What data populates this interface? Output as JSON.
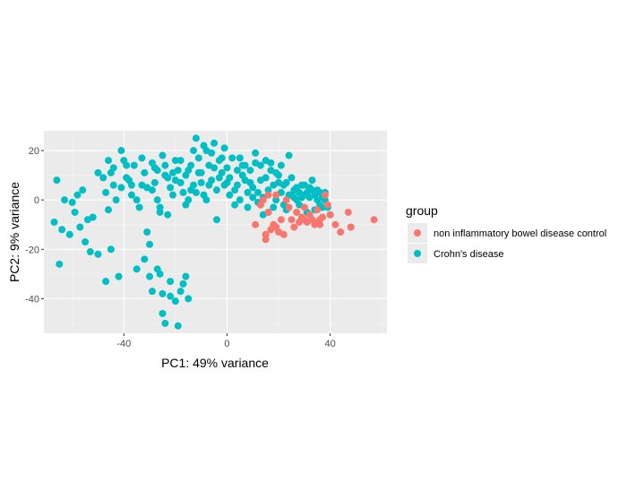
{
  "chart_data": {
    "type": "scatter",
    "xlabel": "PC1: 49% variance",
    "ylabel": "PC2: 9% variance",
    "xlim": [
      -71,
      62
    ],
    "ylim": [
      -54,
      28
    ],
    "x_ticks": [
      -40,
      0,
      40
    ],
    "y_ticks": [
      20,
      0,
      -20,
      -40
    ],
    "x_tick_labels": [
      "-40",
      "0",
      "40"
    ],
    "y_tick_labels": [
      "20",
      "0",
      "-20",
      "-40"
    ],
    "grid": true,
    "legend": {
      "title": "group",
      "placement": "right"
    },
    "series": [
      {
        "name": "non inflammatory bowel disease control",
        "color": "#F8766D",
        "points": [
          [
            11,
            -10
          ],
          [
            13,
            -2
          ],
          [
            14,
            0
          ],
          [
            15,
            -14
          ],
          [
            15,
            -16
          ],
          [
            16,
            -5
          ],
          [
            17,
            -12
          ],
          [
            18,
            -10
          ],
          [
            19,
            2
          ],
          [
            20,
            -13
          ],
          [
            21,
            -8
          ],
          [
            22,
            -14
          ],
          [
            23,
            0
          ],
          [
            25,
            -8
          ],
          [
            26,
            -11
          ],
          [
            27,
            -5
          ],
          [
            28,
            -9
          ],
          [
            29,
            -7
          ],
          [
            30,
            -8
          ],
          [
            31,
            -9
          ],
          [
            32,
            -6
          ],
          [
            33,
            -8
          ],
          [
            34,
            -10
          ],
          [
            35,
            -4
          ],
          [
            36,
            -8
          ],
          [
            37,
            -7
          ],
          [
            38,
            2
          ],
          [
            39,
            -2
          ],
          [
            40,
            -6
          ],
          [
            42,
            -10
          ],
          [
            44,
            -13
          ],
          [
            47,
            -5
          ],
          [
            48,
            -11
          ],
          [
            57,
            -8
          ],
          [
            16,
            2
          ],
          [
            19,
            -11
          ],
          [
            24,
            -3
          ],
          [
            30,
            -3
          ],
          [
            34,
            -9
          ],
          [
            36,
            -10
          ]
        ]
      },
      {
        "name": "Crohn's disease",
        "color": "#00BFC4",
        "points": [
          [
            -67,
            -9
          ],
          [
            -66,
            8
          ],
          [
            -65,
            -26
          ],
          [
            -64,
            -12
          ],
          [
            -63,
            0
          ],
          [
            -61,
            -14
          ],
          [
            -59,
            -5
          ],
          [
            -58,
            2
          ],
          [
            -57,
            -11
          ],
          [
            -56,
            4
          ],
          [
            -55,
            -17
          ],
          [
            -53,
            -21
          ],
          [
            -52,
            -7
          ],
          [
            -50,
            11
          ],
          [
            -50,
            -22
          ],
          [
            -48,
            9
          ],
          [
            -47,
            3
          ],
          [
            -46,
            -4
          ],
          [
            -45,
            -20
          ],
          [
            -44,
            13
          ],
          [
            -43,
            0
          ],
          [
            -42,
            -31
          ],
          [
            -41,
            20
          ],
          [
            -40,
            16
          ],
          [
            -39,
            9
          ],
          [
            -37,
            6
          ],
          [
            -36,
            14
          ],
          [
            -35,
            0
          ],
          [
            -34,
            -3
          ],
          [
            -33,
            17
          ],
          [
            -32,
            11
          ],
          [
            -31,
            -13
          ],
          [
            -30,
            -31
          ],
          [
            -29,
            4
          ],
          [
            -28,
            7
          ],
          [
            -27,
            12
          ],
          [
            -26,
            -3
          ],
          [
            -25,
            18
          ],
          [
            -24,
            14
          ],
          [
            -23,
            9
          ],
          [
            -22,
            5
          ],
          [
            -21,
            2
          ],
          [
            -20,
            16
          ],
          [
            -19,
            12
          ],
          [
            -18,
            7
          ],
          [
            -17,
            3
          ],
          [
            -16,
            10
          ],
          [
            -15,
            0
          ],
          [
            -14,
            14
          ],
          [
            -13,
            6
          ],
          [
            -12,
            25
          ],
          [
            -11,
            17
          ],
          [
            -10,
            11
          ],
          [
            -9,
            2
          ],
          [
            -8,
            20
          ],
          [
            -7,
            14
          ],
          [
            -6,
            8
          ],
          [
            -5,
            23
          ],
          [
            -4,
            4
          ],
          [
            -3,
            16
          ],
          [
            -2,
            11
          ],
          [
            -1,
            6
          ],
          [
            0,
            13
          ],
          [
            1,
            9
          ],
          [
            2,
            17
          ],
          [
            3,
            4
          ],
          [
            4,
            12
          ],
          [
            5,
            0
          ],
          [
            6,
            14
          ],
          [
            7,
            8
          ],
          [
            8,
            -3
          ],
          [
            9,
            12
          ],
          [
            10,
            5
          ],
          [
            11,
            15
          ],
          [
            12,
            3
          ],
          [
            13,
            8
          ],
          [
            14,
            1
          ],
          [
            15,
            16
          ],
          [
            16,
            -5
          ],
          [
            17,
            12
          ],
          [
            18,
            6
          ],
          [
            19,
            0
          ],
          [
            20,
            10
          ],
          [
            21,
            3
          ],
          [
            22,
            -2
          ],
          [
            23,
            7
          ],
          [
            24,
            18
          ],
          [
            25,
            2
          ],
          [
            26,
            4
          ],
          [
            27,
            0
          ],
          [
            28,
            3
          ],
          [
            29,
            1
          ],
          [
            30,
            2
          ],
          [
            31,
            3
          ],
          [
            32,
            1
          ],
          [
            33,
            4
          ],
          [
            34,
            2
          ],
          [
            35,
            0
          ],
          [
            36,
            -2
          ],
          [
            37,
            1
          ],
          [
            38,
            3
          ],
          [
            39,
            -3
          ],
          [
            40,
            -6
          ],
          [
            -29,
            -37
          ],
          [
            -25,
            -38
          ],
          [
            -22,
            -39
          ],
          [
            -20,
            -41
          ],
          [
            -18,
            -37
          ],
          [
            -17,
            -34
          ],
          [
            -15,
            -40
          ],
          [
            -24,
            -50
          ],
          [
            -19,
            -51
          ],
          [
            -27,
            -28
          ],
          [
            -22,
            -33
          ],
          [
            -16,
            -31
          ],
          [
            -25,
            -46
          ],
          [
            -35,
            -28
          ],
          [
            -30,
            -18
          ],
          [
            -26,
            -5
          ],
          [
            -23,
            -6
          ],
          [
            -8,
            0
          ],
          [
            -4,
            -8
          ],
          [
            3,
            -2
          ],
          [
            -12,
            3
          ],
          [
            -16,
            -2
          ],
          [
            -3,
            9
          ],
          [
            -9,
            22
          ],
          [
            -6,
            19
          ],
          [
            -27,
            0
          ],
          [
            -21,
            11
          ],
          [
            -44,
            6
          ],
          [
            -54,
            -8
          ],
          [
            -60,
            -1
          ],
          [
            -45,
            11
          ],
          [
            -37,
            2
          ],
          [
            -33,
            6
          ],
          [
            7,
            14
          ],
          [
            11,
            19
          ],
          [
            15,
            9
          ],
          [
            19,
            11
          ],
          [
            25,
            9
          ],
          [
            29,
            6
          ],
          [
            33,
            8
          ],
          [
            35,
            4
          ],
          [
            37,
            -3
          ],
          [
            14,
            -6
          ],
          [
            10,
            1
          ],
          [
            23,
            -4
          ],
          [
            27,
            5
          ],
          [
            31,
            -5
          ],
          [
            18,
            -3
          ],
          [
            22,
            6
          ],
          [
            26,
            1
          ],
          [
            30,
            6
          ],
          [
            34,
            -4
          ],
          [
            9,
            7
          ],
          [
            5,
            17
          ],
          [
            1,
            2
          ],
          [
            -2,
            17
          ],
          [
            -7,
            6
          ],
          [
            -11,
            11
          ],
          [
            -14,
            4
          ],
          [
            -18,
            16
          ],
          [
            -24,
            10
          ],
          [
            -28,
            13
          ],
          [
            -31,
            5
          ],
          [
            -38,
            8
          ],
          [
            -41,
            5
          ],
          [
            -29,
            15
          ],
          [
            -15,
            12
          ],
          [
            -10,
            7
          ],
          [
            -5,
            13
          ],
          [
            0,
            7
          ],
          [
            6,
            10
          ],
          [
            12,
            -1
          ],
          [
            16,
            4
          ],
          [
            20,
            7
          ],
          [
            24,
            2
          ],
          [
            28,
            -2
          ],
          [
            32,
            5
          ],
          [
            36,
            3
          ],
          [
            38,
            0
          ],
          [
            21,
            14
          ],
          [
            17,
            15
          ],
          [
            13,
            14
          ],
          [
            -20,
            8
          ],
          [
            -13,
            20
          ],
          [
            -1,
            21
          ],
          [
            4,
            6
          ],
          [
            8,
            3
          ],
          [
            -47,
            -33
          ],
          [
            -32,
            -24
          ],
          [
            -26,
            -30
          ],
          [
            -39,
            14
          ],
          [
            -46,
            16
          ]
        ]
      }
    ]
  }
}
